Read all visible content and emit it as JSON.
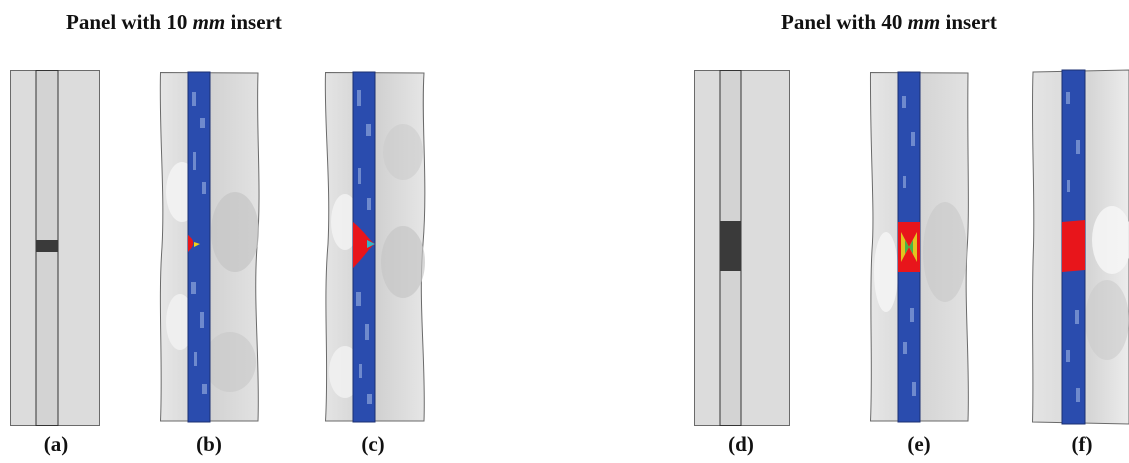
{
  "titles": {
    "left": {
      "prefix": "Panel with 10 ",
      "unit": "mm",
      "suffix": " insert"
    },
    "right": {
      "prefix": "Panel with 40 ",
      "unit": "mm",
      "suffix": " insert"
    }
  },
  "panels": [
    {
      "id": "a",
      "caption": "(a)"
    },
    {
      "id": "b",
      "caption": "(b)"
    },
    {
      "id": "c",
      "caption": "(c)"
    },
    {
      "id": "d",
      "caption": "(d)"
    },
    {
      "id": "e",
      "caption": "(e)"
    },
    {
      "id": "f",
      "caption": "(f)"
    }
  ],
  "colors": {
    "panel": "#dcdcdc",
    "strip": "#2a4cae",
    "insert_plain": "#3a3a3a",
    "damage": "#e8151b",
    "edge": "#6a6a6a"
  }
}
